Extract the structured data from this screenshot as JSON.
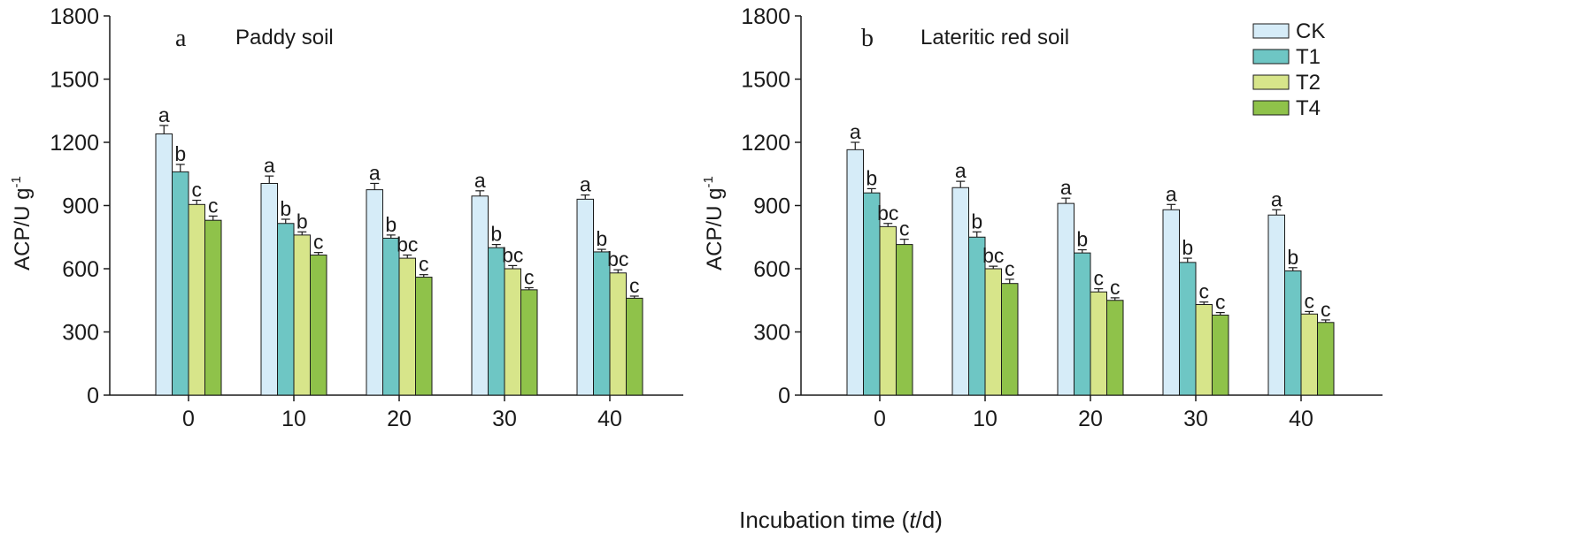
{
  "chart_data": {
    "type": "bar",
    "xlabel": "Incubation time",
    "xlabel_var": "t",
    "xlabel_unit": "/d",
    "xlabel_full": "Incubation time (t/d)",
    "ylabel": "ACP/U g",
    "ylabel_sup": "-1",
    "ylim": [
      0,
      1800
    ],
    "yticks": [
      "0",
      "300",
      "600",
      "900",
      "1200",
      "1500",
      "1800"
    ],
    "categories": [
      "0",
      "10",
      "20",
      "30",
      "40"
    ],
    "legend": {
      "position": "top-right",
      "entries": [
        {
          "name": "CK",
          "color": "#d6ecf8"
        },
        {
          "name": "T1",
          "color": "#6ec6c4"
        },
        {
          "name": "T2",
          "color": "#d7e58a"
        },
        {
          "name": "T4",
          "color": "#8fc24a"
        }
      ]
    },
    "panels": [
      {
        "letter": "a",
        "title": "Paddy soil",
        "series": [
          {
            "name": "CK",
            "values": [
              1240,
              1005,
              975,
              945,
              930
            ],
            "errors": [
              40,
              35,
              30,
              25,
              20
            ],
            "labels": [
              "a",
              "a",
              "a",
              "a",
              "a"
            ]
          },
          {
            "name": "T1",
            "values": [
              1060,
              815,
              745,
              700,
              680
            ],
            "errors": [
              35,
              20,
              15,
              15,
              12
            ],
            "labels": [
              "b",
              "b",
              "b",
              "b",
              "b"
            ]
          },
          {
            "name": "T2",
            "values": [
              905,
              760,
              650,
              600,
              580
            ],
            "errors": [
              20,
              15,
              15,
              15,
              15
            ],
            "labels": [
              "c",
              "b",
              "bc",
              "bc",
              "bc"
            ]
          },
          {
            "name": "T4",
            "values": [
              830,
              665,
              560,
              500,
              460
            ],
            "errors": [
              20,
              12,
              12,
              10,
              10
            ],
            "labels": [
              "c",
              "c",
              "c",
              "c",
              "c"
            ]
          }
        ]
      },
      {
        "letter": "b",
        "title": "Lateritic red soil",
        "series": [
          {
            "name": "CK",
            "values": [
              1165,
              985,
              910,
              880,
              855
            ],
            "errors": [
              35,
              30,
              25,
              25,
              25
            ],
            "labels": [
              "a",
              "a",
              "a",
              "a",
              "a"
            ]
          },
          {
            "name": "T1",
            "values": [
              960,
              750,
              675,
              630,
              590
            ],
            "errors": [
              20,
              25,
              15,
              20,
              15
            ],
            "labels": [
              "b",
              "b",
              "b",
              "b",
              "b"
            ]
          },
          {
            "name": "T2",
            "values": [
              800,
              600,
              490,
              430,
              385
            ],
            "errors": [
              15,
              12,
              15,
              12,
              12
            ],
            "labels": [
              "bc",
              "bc",
              "c",
              "c",
              "c"
            ]
          },
          {
            "name": "T4",
            "values": [
              715,
              530,
              450,
              380,
              345
            ],
            "errors": [
              25,
              20,
              12,
              12,
              12
            ],
            "labels": [
              "c",
              "c",
              "c",
              "c",
              "c"
            ]
          }
        ]
      }
    ]
  }
}
